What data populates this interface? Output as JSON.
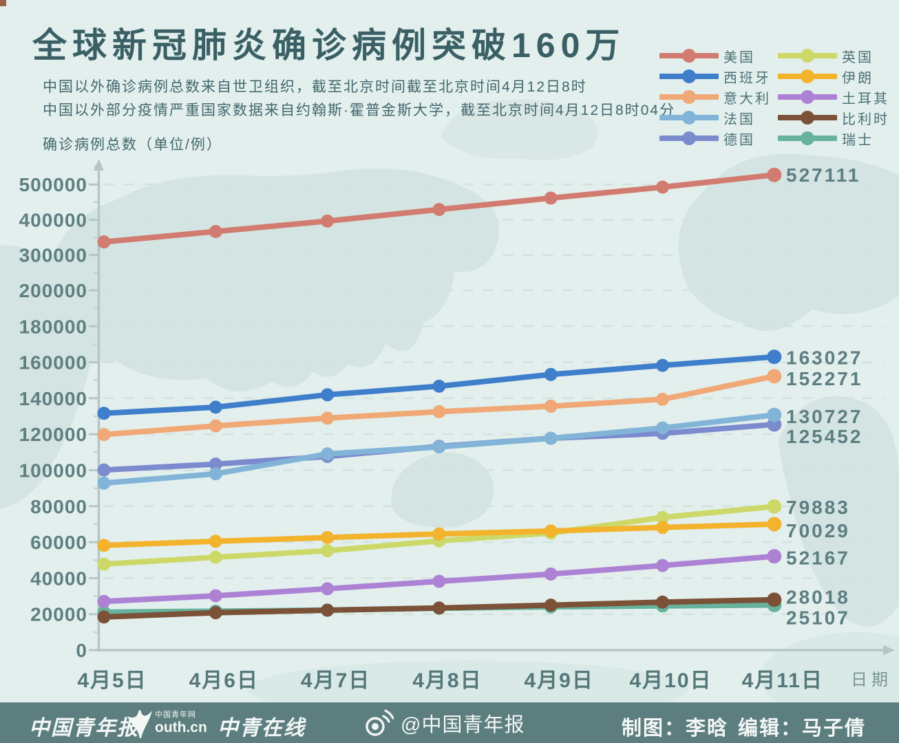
{
  "header": {
    "title": "全球新冠肺炎确诊病例突破160万",
    "subtitle1": "中国以外确诊病例总数来自世卫组织，截至北京时间截至北京时间4月12日8时",
    "subtitle2": "中国以外部分疫情严重国家数据来自约翰斯·霍普金斯大学，截至北京时间4月12日8时04分",
    "y_axis_unit": "确诊病例总数（单位/例）",
    "x_axis_label": "日期"
  },
  "chart_data": {
    "type": "line",
    "title": "全球新冠肺炎确诊病例突破160万",
    "xlabel": "日期",
    "ylabel": "确诊病例总数（单位/例）",
    "x_categories": [
      "4月5日",
      "4月6日",
      "4月7日",
      "4月8日",
      "4月9日",
      "4月10日",
      "4月11日"
    ],
    "y_ticks": [
      0,
      20000,
      40000,
      60000,
      80000,
      100000,
      120000,
      140000,
      160000,
      180000,
      200000,
      300000,
      400000,
      500000
    ],
    "y_axis_note": "axis compressed above 200000: 100000 per step spacing equals 20000 per step below",
    "grid": "dashed horizontal lines at each y tick",
    "legend_position": "top-right, two columns",
    "series": [
      {
        "key": "us",
        "name": "美国",
        "color": "#d27b70",
        "values": [
          337072,
          366667,
          396223,
          429052,
          461437,
          492416,
          527111
        ],
        "end_label": "527111"
      },
      {
        "key": "spain",
        "name": "西班牙",
        "color": "#3f7ecb",
        "values": [
          131646,
          135032,
          141942,
          146690,
          153222,
          158273,
          163027
        ],
        "end_label": "163027"
      },
      {
        "key": "italy",
        "name": "意大利",
        "color": "#f0a876",
        "values": [
          119827,
          124632,
          128948,
          132547,
          135586,
          139422,
          152271
        ],
        "end_label": "152271"
      },
      {
        "key": "france",
        "name": "法国",
        "color": "#82b4d8",
        "values": [
          92839,
          98010,
          109069,
          112950,
          117749,
          123500,
          130727
        ],
        "end_label": "130727"
      },
      {
        "key": "germany",
        "name": "德国",
        "color": "#7b8bce",
        "values": [
          100123,
          103374,
          107663,
          113296,
          117749,
          120500,
          125452
        ],
        "end_label": "125452"
      },
      {
        "key": "uk",
        "name": "英国",
        "color": "#ccd968",
        "values": [
          47806,
          51608,
          55242,
          60733,
          65077,
          73758,
          79883
        ],
        "end_label": "79883"
      },
      {
        "key": "iran",
        "name": "伊朗",
        "color": "#f3b32c",
        "values": [
          58226,
          60500,
          62589,
          64586,
          66220,
          68192,
          70029
        ],
        "end_label": "70029"
      },
      {
        "key": "turkey",
        "name": "土耳其",
        "color": "#ad82d4",
        "values": [
          27069,
          30217,
          34109,
          38226,
          42282,
          47029,
          52167
        ],
        "end_label": "52167"
      },
      {
        "key": "belgium",
        "name": "比利时",
        "color": "#7b5138",
        "values": [
          18431,
          20814,
          22194,
          23403,
          24983,
          26667,
          28018
        ],
        "end_label": "28018"
      },
      {
        "key": "switzerland",
        "name": "瑞士",
        "color": "#66b29c",
        "values": [
          21100,
          21657,
          22253,
          23280,
          24051,
          24551,
          25107
        ],
        "end_label": "25107"
      }
    ]
  },
  "footer": {
    "logo1": "中国青年报",
    "logo2_top": "中国青年网",
    "logo2_main": "outh.cn",
    "logo3": "中青在线",
    "weibo_handle": "@中国青年报",
    "credit_map": "制图：李晗",
    "credit_edit": "编辑：马子倩"
  }
}
